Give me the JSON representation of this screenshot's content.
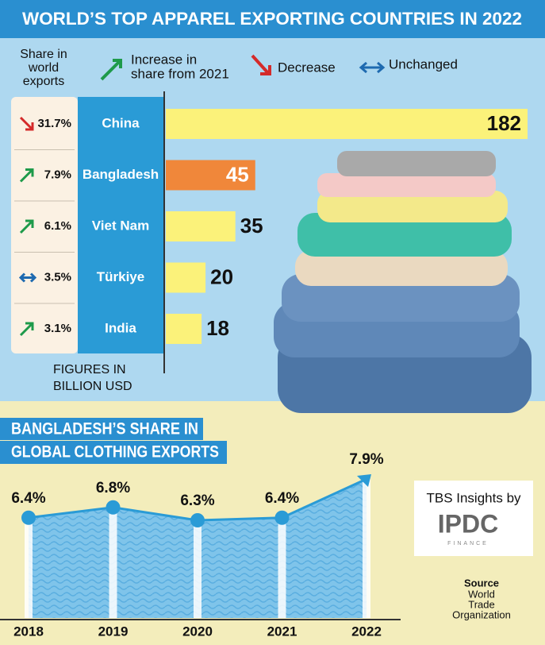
{
  "chart_data": [
    {
      "type": "barh",
      "title": "WORLD’S TOP APPAREL EXPORTING COUNTRIES IN 2022",
      "share_legend": [
        "Share in",
        "world",
        "exports"
      ],
      "trend_legend": {
        "increase": [
          "Increase in",
          "share from 2021"
        ],
        "decrease": "Decrease",
        "unchanged": "Unchanged"
      },
      "categories": [
        "China",
        "Bangladesh",
        "Viet Nam",
        "Türkiye",
        "India"
      ],
      "values": [
        182,
        45,
        35,
        20,
        18
      ],
      "colors": [
        "#fbf27a",
        "#f0873a",
        "#fbf27a",
        "#fbf27a",
        "#fbf27a"
      ],
      "shares": [
        31.7,
        7.9,
        6.1,
        3.5,
        3.1
      ],
      "share_labels": [
        "31.7%",
        "7.9%",
        "6.1%",
        "3.5%",
        "3.1%"
      ],
      "trends": [
        "decrease",
        "increase",
        "increase",
        "unchanged",
        "increase"
      ],
      "unit_note": [
        "FIGURES IN",
        "BILLION USD"
      ]
    },
    {
      "type": "line",
      "title": [
        "BANGLADESH’S SHARE IN",
        "GLOBAL CLOTHING EXPORTS"
      ],
      "categories": [
        "2018",
        "2019",
        "2020",
        "2021",
        "2022"
      ],
      "values": [
        6.4,
        6.8,
        6.3,
        6.4,
        7.9
      ],
      "value_labels": [
        "6.4%",
        "6.8%",
        "6.3%",
        "6.4%",
        "7.9%"
      ],
      "color": "#2a9bd6"
    }
  ],
  "credits": {
    "by": "TBS Insights by",
    "logo": "IPDC",
    "logo_sub": "FINANCE",
    "source_title": "Source",
    "source": [
      "World",
      "Trade",
      "Organization"
    ]
  }
}
